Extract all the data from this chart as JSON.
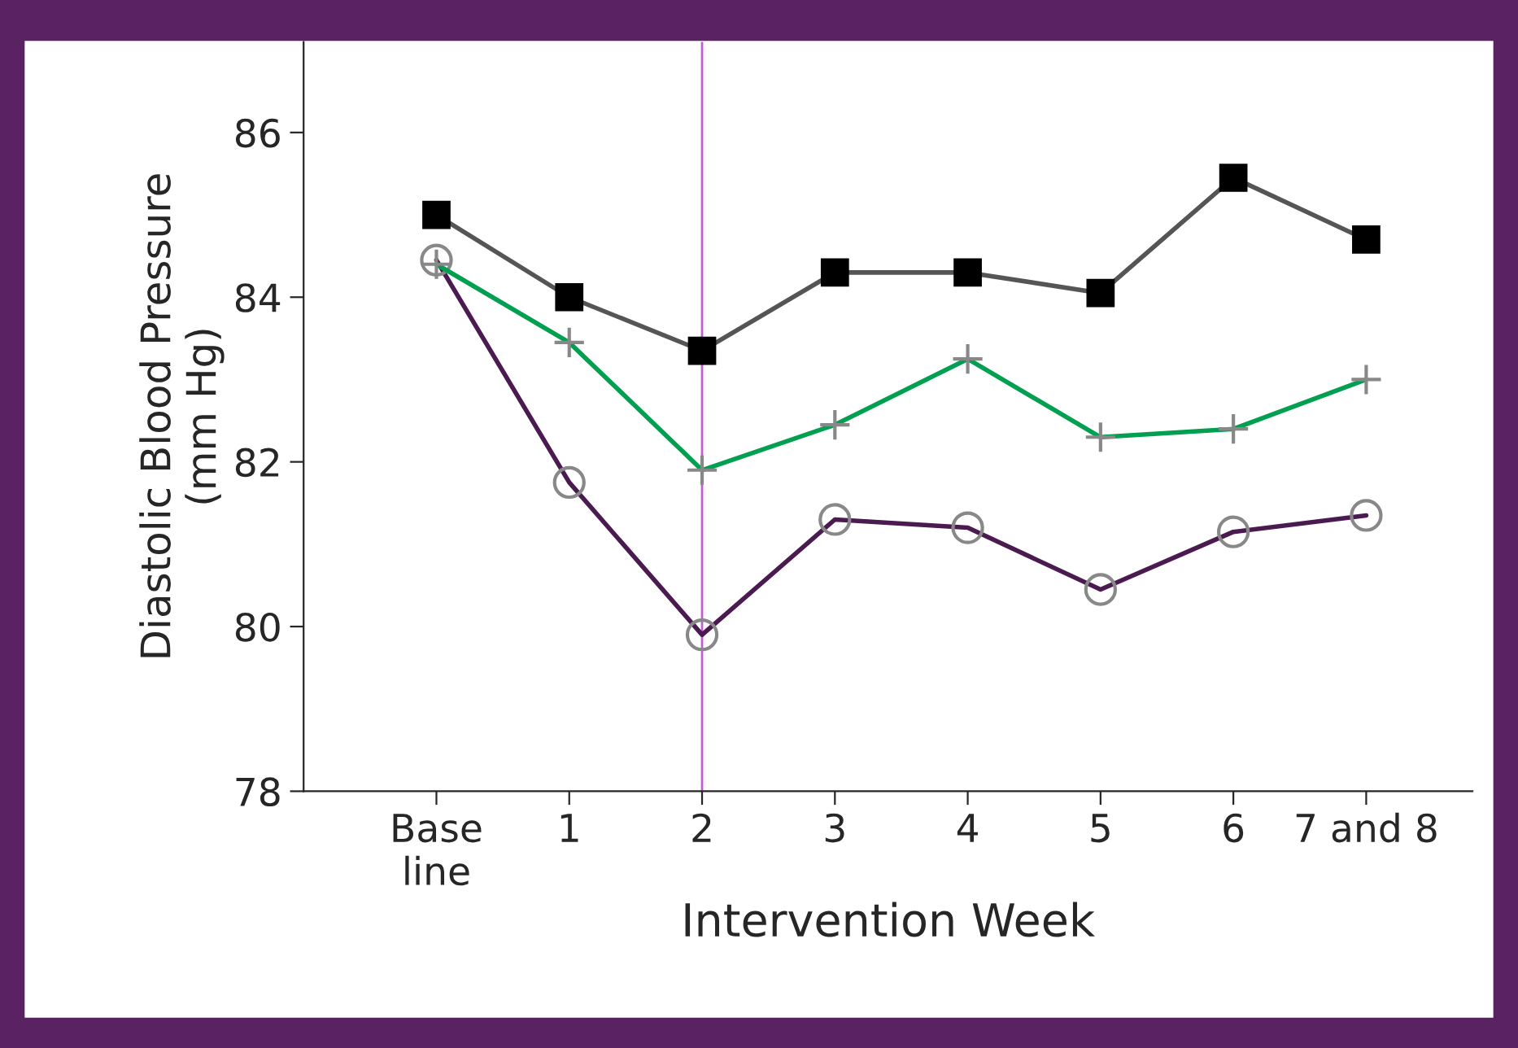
{
  "chart_data": {
    "type": "line",
    "xlabel": "Intervention Week",
    "ylabel": "Diastolic Blood Pressure\n(mm Hg)",
    "categories": [
      "Base\nline",
      "1",
      "2",
      "3",
      "4",
      "5",
      "6",
      "7 and 8"
    ],
    "series": [
      {
        "color": "#555555",
        "marker": "square",
        "values": [
          85.0,
          84.0,
          83.35,
          84.3,
          84.3,
          84.05,
          85.45,
          84.7
        ]
      },
      {
        "color": "#00a050",
        "marker": "cross",
        "values": [
          84.4,
          83.45,
          81.9,
          82.45,
          83.25,
          82.3,
          82.4,
          83.0
        ]
      },
      {
        "color": "#4a1a50",
        "marker": "circle",
        "values": [
          84.45,
          81.75,
          79.9,
          81.3,
          81.2,
          80.45,
          81.15,
          81.35
        ]
      }
    ],
    "ylim": [
      78,
      87.1
    ],
    "yticks": [
      78,
      80,
      82,
      84,
      86
    ],
    "grid": false,
    "legend": false,
    "ref_lines": [
      {
        "axis": "x",
        "value": "2",
        "color": "#c060d0"
      }
    ]
  }
}
